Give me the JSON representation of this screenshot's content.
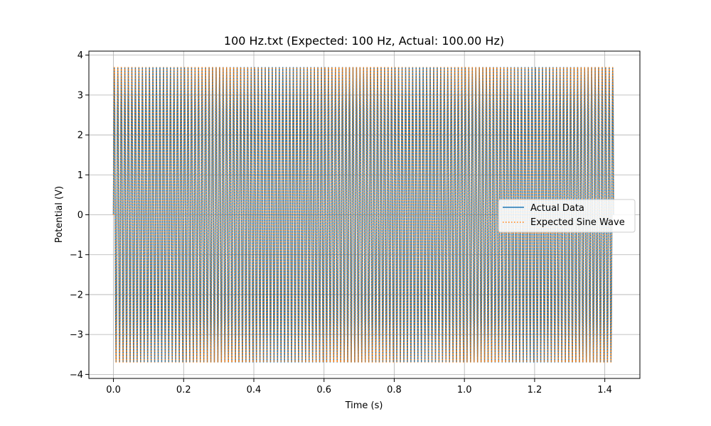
{
  "chart_data": {
    "type": "line",
    "title": "100 Hz.txt (Expected: 100 Hz, Actual: 100.00 Hz)",
    "xlabel": "Time (s)",
    "ylabel": "Potential (V)",
    "xlim": [
      -0.07,
      1.5
    ],
    "ylim": [
      -4.1,
      4.1
    ],
    "x_ticks": [
      0.0,
      0.2,
      0.4,
      0.6,
      0.8,
      1.0,
      1.2,
      1.4
    ],
    "x_tick_labels": [
      "0.0",
      "0.2",
      "0.4",
      "0.6",
      "0.8",
      "1.0",
      "1.2",
      "1.4"
    ],
    "y_ticks": [
      -4,
      -3,
      -2,
      -1,
      0,
      1,
      2,
      3,
      4
    ],
    "y_tick_labels": [
      "−4",
      "−3",
      "−2",
      "−1",
      "0",
      "1",
      "2",
      "3",
      "4"
    ],
    "grid": true,
    "legend_position": "center-right",
    "series": [
      {
        "name": "Actual Data",
        "color": "#1f77b4",
        "style": "solid",
        "frequency_hz": 100,
        "amplitude_v": 3.7,
        "t_start_s": 0.0,
        "t_end_s": 1.425
      },
      {
        "name": "Expected Sine Wave",
        "color": "#ff7f0e",
        "style": "dotted",
        "frequency_hz": 100,
        "amplitude_v": 3.7,
        "t_start_s": 0.0,
        "t_end_s": 1.425
      }
    ]
  }
}
